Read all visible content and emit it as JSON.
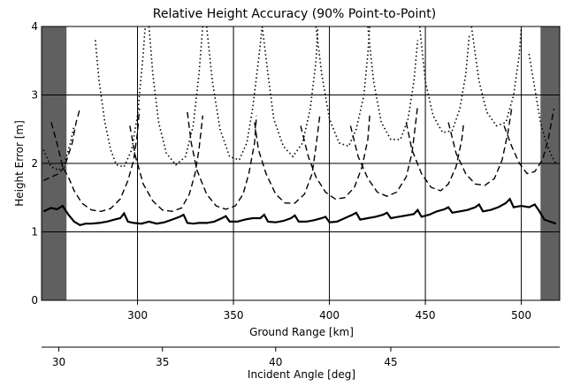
{
  "chart_data": {
    "type": "line",
    "title": "Relative Height Accuracy (90% Point-to-Point)",
    "xlabel": "Ground Range [km]",
    "ylabel": "Height Error [m]",
    "xlim": [
      250,
      520
    ],
    "ylim": [
      0,
      4
    ],
    "xticks": [
      300,
      350,
      400,
      450,
      500
    ],
    "yticks": [
      0,
      1,
      2,
      3,
      4
    ],
    "grid": true,
    "excluded_ranges": [
      [
        250,
        263
      ],
      [
        510,
        520
      ]
    ],
    "secondary_axis": {
      "label": "Incident Angle [deg]",
      "position": "bottom",
      "ticks": [
        {
          "label": "30",
          "ground_range": 259
        },
        {
          "label": "35",
          "ground_range": 313
        },
        {
          "label": "40",
          "ground_range": 372
        },
        {
          "label": "45",
          "ground_range": 432
        }
      ]
    },
    "series": [
      {
        "style": "solid",
        "points": [
          [
            251,
            1.3
          ],
          [
            255,
            1.35
          ],
          [
            258,
            1.33
          ],
          [
            261,
            1.38
          ],
          [
            264,
            1.25
          ],
          [
            267,
            1.15
          ],
          [
            270,
            1.1
          ],
          [
            273,
            1.12
          ],
          [
            276,
            1.12
          ],
          [
            280,
            1.13
          ],
          [
            284,
            1.15
          ],
          [
            288,
            1.18
          ],
          [
            291,
            1.2
          ],
          [
            293,
            1.27
          ],
          [
            295,
            1.15
          ],
          [
            298,
            1.13
          ],
          [
            302,
            1.12
          ],
          [
            306,
            1.15
          ],
          [
            310,
            1.12
          ],
          [
            314,
            1.14
          ],
          [
            318,
            1.18
          ],
          [
            322,
            1.22
          ],
          [
            324,
            1.25
          ],
          [
            326,
            1.13
          ],
          [
            329,
            1.12
          ],
          [
            332,
            1.13
          ],
          [
            336,
            1.13
          ],
          [
            340,
            1.15
          ],
          [
            344,
            1.2
          ],
          [
            346,
            1.23
          ],
          [
            348,
            1.15
          ],
          [
            352,
            1.15
          ],
          [
            356,
            1.18
          ],
          [
            360,
            1.2
          ],
          [
            364,
            1.2
          ],
          [
            366,
            1.25
          ],
          [
            368,
            1.15
          ],
          [
            372,
            1.14
          ],
          [
            376,
            1.16
          ],
          [
            380,
            1.2
          ],
          [
            382,
            1.24
          ],
          [
            384,
            1.15
          ],
          [
            388,
            1.15
          ],
          [
            392,
            1.17
          ],
          [
            396,
            1.2
          ],
          [
            398,
            1.22
          ],
          [
            400,
            1.14
          ],
          [
            404,
            1.15
          ],
          [
            408,
            1.2
          ],
          [
            412,
            1.25
          ],
          [
            414,
            1.28
          ],
          [
            416,
            1.18
          ],
          [
            420,
            1.2
          ],
          [
            424,
            1.22
          ],
          [
            428,
            1.25
          ],
          [
            430,
            1.28
          ],
          [
            432,
            1.2
          ],
          [
            436,
            1.22
          ],
          [
            440,
            1.24
          ],
          [
            444,
            1.26
          ],
          [
            446,
            1.32
          ],
          [
            448,
            1.22
          ],
          [
            452,
            1.25
          ],
          [
            456,
            1.3
          ],
          [
            460,
            1.33
          ],
          [
            462,
            1.36
          ],
          [
            464,
            1.28
          ],
          [
            468,
            1.3
          ],
          [
            472,
            1.32
          ],
          [
            476,
            1.36
          ],
          [
            478,
            1.4
          ],
          [
            480,
            1.3
          ],
          [
            484,
            1.32
          ],
          [
            488,
            1.36
          ],
          [
            492,
            1.42
          ],
          [
            494,
            1.48
          ],
          [
            496,
            1.36
          ],
          [
            500,
            1.38
          ],
          [
            504,
            1.36
          ],
          [
            507,
            1.4
          ],
          [
            509,
            1.32
          ],
          [
            512,
            1.18
          ],
          [
            515,
            1.15
          ],
          [
            518,
            1.12
          ]
        ]
      },
      {
        "style": "dashed",
        "segments": [
          [
            [
              251,
              1.75
            ],
            [
              255,
              1.8
            ],
            [
              259,
              1.85
            ],
            [
              262,
              1.95
            ],
            [
              266,
              2.3
            ],
            [
              268,
              2.6
            ],
            [
              270,
              2.8
            ]
          ],
          [
            [
              255,
              2.6
            ],
            [
              258,
              2.3
            ],
            [
              261,
              1.95
            ],
            [
              264,
              1.8
            ],
            [
              267,
              1.6
            ],
            [
              271,
              1.42
            ],
            [
              276,
              1.32
            ],
            [
              281,
              1.3
            ],
            [
              286,
              1.34
            ],
            [
              291,
              1.48
            ],
            [
              295,
              1.75
            ],
            [
              298,
              2.05
            ],
            [
              300,
              2.45
            ],
            [
              301,
              2.8
            ]
          ],
          [
            [
              296,
              2.55
            ],
            [
              299,
              2.1
            ],
            [
              303,
              1.7
            ],
            [
              308,
              1.45
            ],
            [
              313,
              1.32
            ],
            [
              318,
              1.3
            ],
            [
              323,
              1.35
            ],
            [
              327,
              1.55
            ],
            [
              330,
              1.85
            ],
            [
              332,
              2.2
            ],
            [
              334,
              2.7
            ]
          ],
          [
            [
              326,
              2.75
            ],
            [
              328,
              2.3
            ],
            [
              331,
              1.9
            ],
            [
              336,
              1.55
            ],
            [
              341,
              1.38
            ],
            [
              346,
              1.33
            ],
            [
              351,
              1.38
            ],
            [
              355,
              1.55
            ],
            [
              358,
              1.85
            ],
            [
              361,
              2.3
            ],
            [
              362,
              2.7
            ]
          ],
          [
            [
              361,
              2.6
            ],
            [
              363,
              2.2
            ],
            [
              367,
              1.85
            ],
            [
              372,
              1.55
            ],
            [
              377,
              1.42
            ],
            [
              382,
              1.42
            ],
            [
              387,
              1.55
            ],
            [
              391,
              1.85
            ],
            [
              393,
              2.25
            ],
            [
              395,
              2.7
            ]
          ],
          [
            [
              385,
              2.55
            ],
            [
              389,
              2.1
            ],
            [
              393,
              1.8
            ],
            [
              398,
              1.58
            ],
            [
              403,
              1.48
            ],
            [
              408,
              1.5
            ],
            [
              413,
              1.65
            ],
            [
              417,
              1.95
            ],
            [
              420,
              2.35
            ],
            [
              421,
              2.7
            ]
          ],
          [
            [
              411,
              2.55
            ],
            [
              415,
              2.1
            ],
            [
              420,
              1.78
            ],
            [
              425,
              1.58
            ],
            [
              430,
              1.52
            ],
            [
              435,
              1.58
            ],
            [
              440,
              1.8
            ],
            [
              443,
              2.15
            ],
            [
              445,
              2.6
            ],
            [
              446,
              2.85
            ]
          ],
          [
            [
              440,
              2.6
            ],
            [
              443,
              2.2
            ],
            [
              448,
              1.85
            ],
            [
              453,
              1.65
            ],
            [
              458,
              1.6
            ],
            [
              462,
              1.7
            ],
            [
              466,
              1.95
            ],
            [
              469,
              2.35
            ],
            [
              470,
              2.6
            ]
          ],
          [
            [
              462,
              2.6
            ],
            [
              466,
              2.15
            ],
            [
              471,
              1.85
            ],
            [
              476,
              1.7
            ],
            [
              481,
              1.68
            ],
            [
              486,
              1.78
            ],
            [
              490,
              2.05
            ],
            [
              493,
              2.45
            ],
            [
              495,
              2.8
            ]
          ],
          [
            [
              491,
              2.55
            ],
            [
              495,
              2.25
            ],
            [
              499,
              2.0
            ],
            [
              503,
              1.85
            ],
            [
              507,
              1.88
            ],
            [
              511,
              2.05
            ],
            [
              514,
              2.35
            ],
            [
              517,
              2.8
            ]
          ]
        ]
      },
      {
        "style": "dotted",
        "segments": [
          [
            [
              251,
              2.2
            ],
            [
              255,
              1.95
            ],
            [
              259,
              1.9
            ],
            [
              262,
              2.0
            ],
            [
              265,
              2.3
            ],
            [
              267,
              2.55
            ]
          ],
          [
            [
              278,
              3.8
            ],
            [
              280,
              3.2
            ],
            [
              283,
              2.6
            ],
            [
              286,
              2.2
            ],
            [
              289,
              1.98
            ],
            [
              293,
              1.95
            ],
            [
              297,
              2.2
            ],
            [
              300,
              2.7
            ],
            [
              303,
              3.6
            ],
            [
              304,
              4.0
            ]
          ],
          [
            [
              306,
              4.0
            ],
            [
              308,
              3.3
            ],
            [
              311,
              2.6
            ],
            [
              315,
              2.15
            ],
            [
              320,
              1.98
            ],
            [
              325,
              2.1
            ],
            [
              329,
              2.55
            ],
            [
              332,
              3.3
            ],
            [
              334,
              4.0
            ]
          ],
          [
            [
              336,
              4.0
            ],
            [
              339,
              3.2
            ],
            [
              343,
              2.5
            ],
            [
              348,
              2.1
            ],
            [
              353,
              2.05
            ],
            [
              357,
              2.3
            ],
            [
              360,
              2.8
            ],
            [
              363,
              3.5
            ],
            [
              365,
              4.0
            ]
          ],
          [
            [
              365,
              4.0
            ],
            [
              368,
              3.3
            ],
            [
              371,
              2.65
            ],
            [
              376,
              2.25
            ],
            [
              381,
              2.1
            ],
            [
              386,
              2.3
            ],
            [
              390,
              2.8
            ],
            [
              393,
              3.5
            ],
            [
              394,
              4.0
            ]
          ],
          [
            [
              393,
              4.0
            ],
            [
              396,
              3.3
            ],
            [
              400,
              2.65
            ],
            [
              405,
              2.3
            ],
            [
              410,
              2.25
            ],
            [
              414,
              2.5
            ],
            [
              418,
              3.0
            ],
            [
              420,
              3.6
            ],
            [
              421,
              4.0
            ]
          ],
          [
            [
              420,
              4.0
            ],
            [
              423,
              3.2
            ],
            [
              427,
              2.6
            ],
            [
              432,
              2.35
            ],
            [
              437,
              2.35
            ],
            [
              441,
              2.65
            ],
            [
              444,
              3.2
            ],
            [
              446,
              3.8
            ]
          ],
          [
            [
              447,
              4.0
            ],
            [
              450,
              3.2
            ],
            [
              454,
              2.7
            ],
            [
              459,
              2.45
            ],
            [
              464,
              2.48
            ],
            [
              468,
              2.8
            ],
            [
              471,
              3.3
            ],
            [
              473,
              3.9
            ]
          ],
          [
            [
              474,
              4.0
            ],
            [
              478,
              3.2
            ],
            [
              482,
              2.75
            ],
            [
              487,
              2.55
            ],
            [
              492,
              2.6
            ],
            [
              496,
              3.0
            ],
            [
              499,
              3.6
            ],
            [
              500,
              4.0
            ]
          ],
          [
            [
              504,
              3.6
            ],
            [
              507,
              3.1
            ],
            [
              510,
              2.6
            ],
            [
              513,
              2.3
            ],
            [
              516,
              2.1
            ],
            [
              518,
              2.0
            ]
          ]
        ]
      }
    ]
  }
}
